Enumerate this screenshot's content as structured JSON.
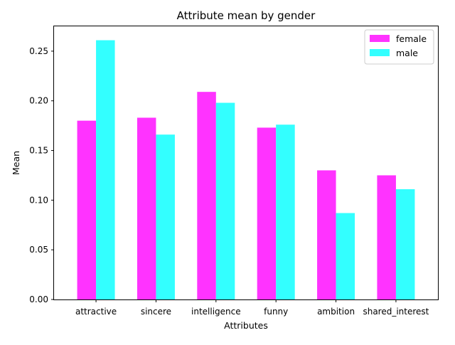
{
  "chart_data": {
    "type": "bar",
    "title": "Attribute mean by gender",
    "xlabel": "Attributes",
    "ylabel": "Mean",
    "categories": [
      "attractive",
      "sincere",
      "intelligence",
      "funny",
      "ambition",
      "shared_interest"
    ],
    "series": [
      {
        "name": "female",
        "color": "#ff33ff",
        "values": [
          0.18,
          0.183,
          0.209,
          0.173,
          0.13,
          0.125
        ]
      },
      {
        "name": "male",
        "color": "#33ffff",
        "values": [
          0.261,
          0.166,
          0.198,
          0.176,
          0.087,
          0.111
        ]
      }
    ],
    "ylim": [
      0,
      0.275
    ],
    "yticks": [
      "0.00",
      "0.05",
      "0.10",
      "0.15",
      "0.20",
      "0.25"
    ],
    "grid": false,
    "legend_position": "top-right"
  }
}
